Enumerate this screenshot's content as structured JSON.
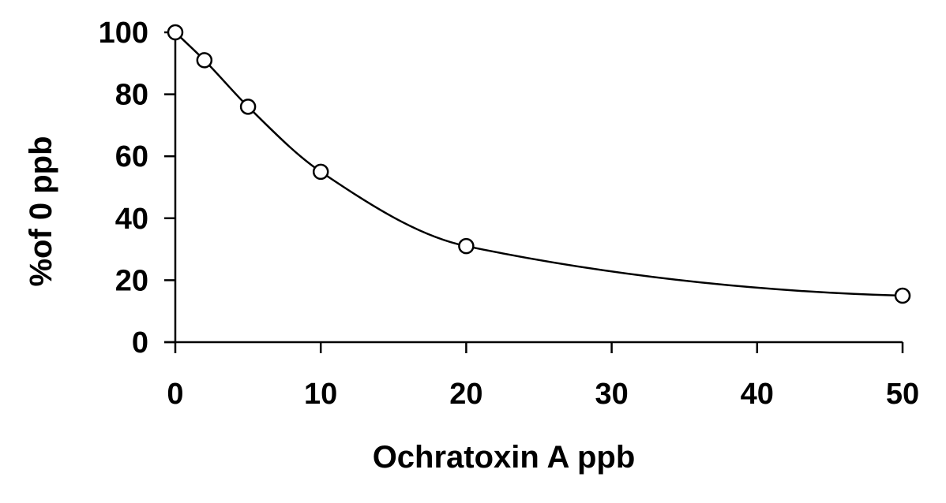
{
  "chart_data": {
    "type": "scatter",
    "title": "",
    "xlabel": "Ochratoxin A ppb",
    "ylabel": "%of 0 ppb",
    "xlim": [
      0,
      50
    ],
    "ylim": [
      0,
      100
    ],
    "x_ticks": [
      0,
      10,
      20,
      30,
      40,
      50
    ],
    "y_ticks": [
      0,
      20,
      40,
      60,
      80,
      100
    ],
    "grid": false,
    "legend": "none",
    "series": [
      {
        "marker": "open-circle",
        "trendline": "smooth-curve",
        "color": "#000000",
        "points": [
          {
            "x": 0,
            "y": 100
          },
          {
            "x": 2,
            "y": 91
          },
          {
            "x": 5,
            "y": 76
          },
          {
            "x": 10,
            "y": 55
          },
          {
            "x": 20,
            "y": 31
          },
          {
            "x": 50,
            "y": 15
          }
        ]
      }
    ]
  }
}
